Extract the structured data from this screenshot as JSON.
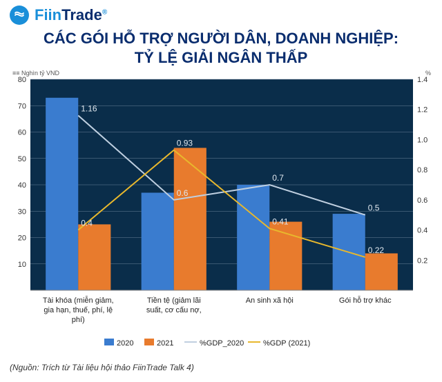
{
  "brand": {
    "prefix": "Fiin",
    "suffix": "Trade",
    "reg": "®"
  },
  "title_line1": "CÁC GÓI HỖ TRỢ NGƯỜI DÂN, DOANH NGHIỆP:",
  "title_line2": "TỶ LỆ GIẢI NGÂN THẤP",
  "y_left_label": "≡≡ Nghìn tỷ VND",
  "y_right_label": "%",
  "source": "(Nguồn: Trích từ Tài liệu hội thảo FiinTrade Talk 4)",
  "chart": {
    "type": "bar+line",
    "background_color": "#0a2d4a",
    "grid_color": "#6b8299",
    "axis_text_color": "#dfe7ee",
    "categories": [
      "Tài khóa (miễn giảm, gia hạn, thuế, phí, lệ phí)",
      "Tiền tệ (giảm lãi suất, cơ cấu nợ,",
      "An sinh xã hội",
      "Gói hỗ trợ khác"
    ],
    "cat_wraps": [
      [
        "Tài khóa (miễn giảm,",
        "gia hạn, thuế, phí, lệ",
        "phí)"
      ],
      [
        "Tiền tệ (giảm lãi",
        "suất, cơ cấu nợ,"
      ],
      [
        "An sinh xã hội"
      ],
      [
        "Gói hỗ trợ khác"
      ]
    ],
    "y_left": {
      "min": 0,
      "max": 80,
      "step": 10
    },
    "y_right": {
      "min": 0,
      "max": 1.4,
      "step": 0.2
    },
    "bars": [
      {
        "name": "2020",
        "color": "#3a7ccf",
        "values": [
          73,
          37,
          40,
          29
        ]
      },
      {
        "name": "2021",
        "color": "#e87b2d",
        "values": [
          25,
          54,
          26,
          14
        ]
      }
    ],
    "lines": [
      {
        "name": "%GDP_2020",
        "color": "#bfcfe0",
        "values": [
          1.16,
          0.6,
          0.7,
          0.5
        ],
        "labels": [
          "1.16",
          "0.6",
          "0.7",
          "0.5"
        ]
      },
      {
        "name": "%GDP (2021)",
        "color": "#e8b82d",
        "values": [
          0.4,
          0.93,
          0.41,
          0.22
        ],
        "labels": [
          "0.4",
          "0.93",
          "0.41",
          "0.22"
        ]
      }
    ],
    "bar_width": 0.34,
    "label_fontsize": 12,
    "tick_fontsize": 11,
    "legend_items": [
      {
        "type": "box",
        "color": "#3a7ccf",
        "label": "2020"
      },
      {
        "type": "box",
        "color": "#e87b2d",
        "label": "2021"
      },
      {
        "type": "line",
        "color": "#bfcfe0",
        "label": "%GDP_2020"
      },
      {
        "type": "line",
        "color": "#e8b82d",
        "label": "%GDP (2021)"
      }
    ]
  }
}
